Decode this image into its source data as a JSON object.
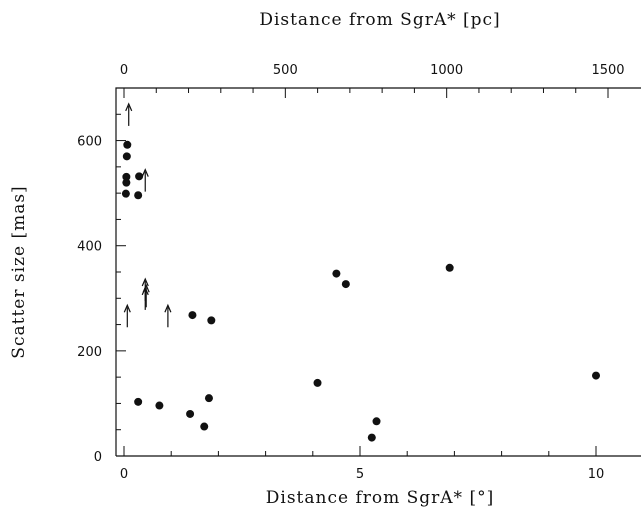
{
  "chart_data": {
    "type": "scatter",
    "xlabel": "Distance from SgrA* [°]",
    "ylabel": "Scatter size [mas]",
    "x2label": "Distance from SgrA* [pc]",
    "xlim": [
      -0.3,
      11.1
    ],
    "ylim": [
      0,
      700
    ],
    "x2lim": [
      -42,
      1554
    ],
    "x_ticks": [
      0,
      5,
      10
    ],
    "y_ticks": [
      0,
      200,
      400,
      600
    ],
    "x2_ticks": [
      0,
      500,
      1000,
      1500
    ],
    "x_tick_labels": [
      "0",
      "5",
      "10"
    ],
    "y_tick_labels": [
      "0",
      "200",
      "400",
      "600"
    ],
    "x2_tick_labels": [
      "0",
      "500",
      "1000",
      "1500"
    ],
    "grid": false,
    "points": [
      {
        "x": 0.07,
        "y": 592
      },
      {
        "x": 0.06,
        "y": 570
      },
      {
        "x": 0.05,
        "y": 531
      },
      {
        "x": 0.05,
        "y": 520
      },
      {
        "x": 0.32,
        "y": 532
      },
      {
        "x": 0.04,
        "y": 499
      },
      {
        "x": 0.3,
        "y": 496
      },
      {
        "x": 1.45,
        "y": 268
      },
      {
        "x": 1.85,
        "y": 258
      },
      {
        "x": 4.5,
        "y": 347
      },
      {
        "x": 4.7,
        "y": 327
      },
      {
        "x": 6.9,
        "y": 358
      },
      {
        "x": 0.3,
        "y": 103
      },
      {
        "x": 0.75,
        "y": 96
      },
      {
        "x": 1.4,
        "y": 80
      },
      {
        "x": 1.8,
        "y": 110
      },
      {
        "x": 1.7,
        "y": 56
      },
      {
        "x": 4.1,
        "y": 139
      },
      {
        "x": 5.25,
        "y": 35
      },
      {
        "x": 5.35,
        "y": 66
      },
      {
        "x": 10.0,
        "y": 153
      }
    ],
    "lower_limits": [
      {
        "x": 0.1,
        "y": 645
      },
      {
        "x": 0.45,
        "y": 520
      },
      {
        "x": 0.45,
        "y": 312
      },
      {
        "x": 0.47,
        "y": 300
      },
      {
        "x": 0.45,
        "y": 295
      },
      {
        "x": 0.07,
        "y": 262
      },
      {
        "x": 0.93,
        "y": 262
      }
    ]
  }
}
